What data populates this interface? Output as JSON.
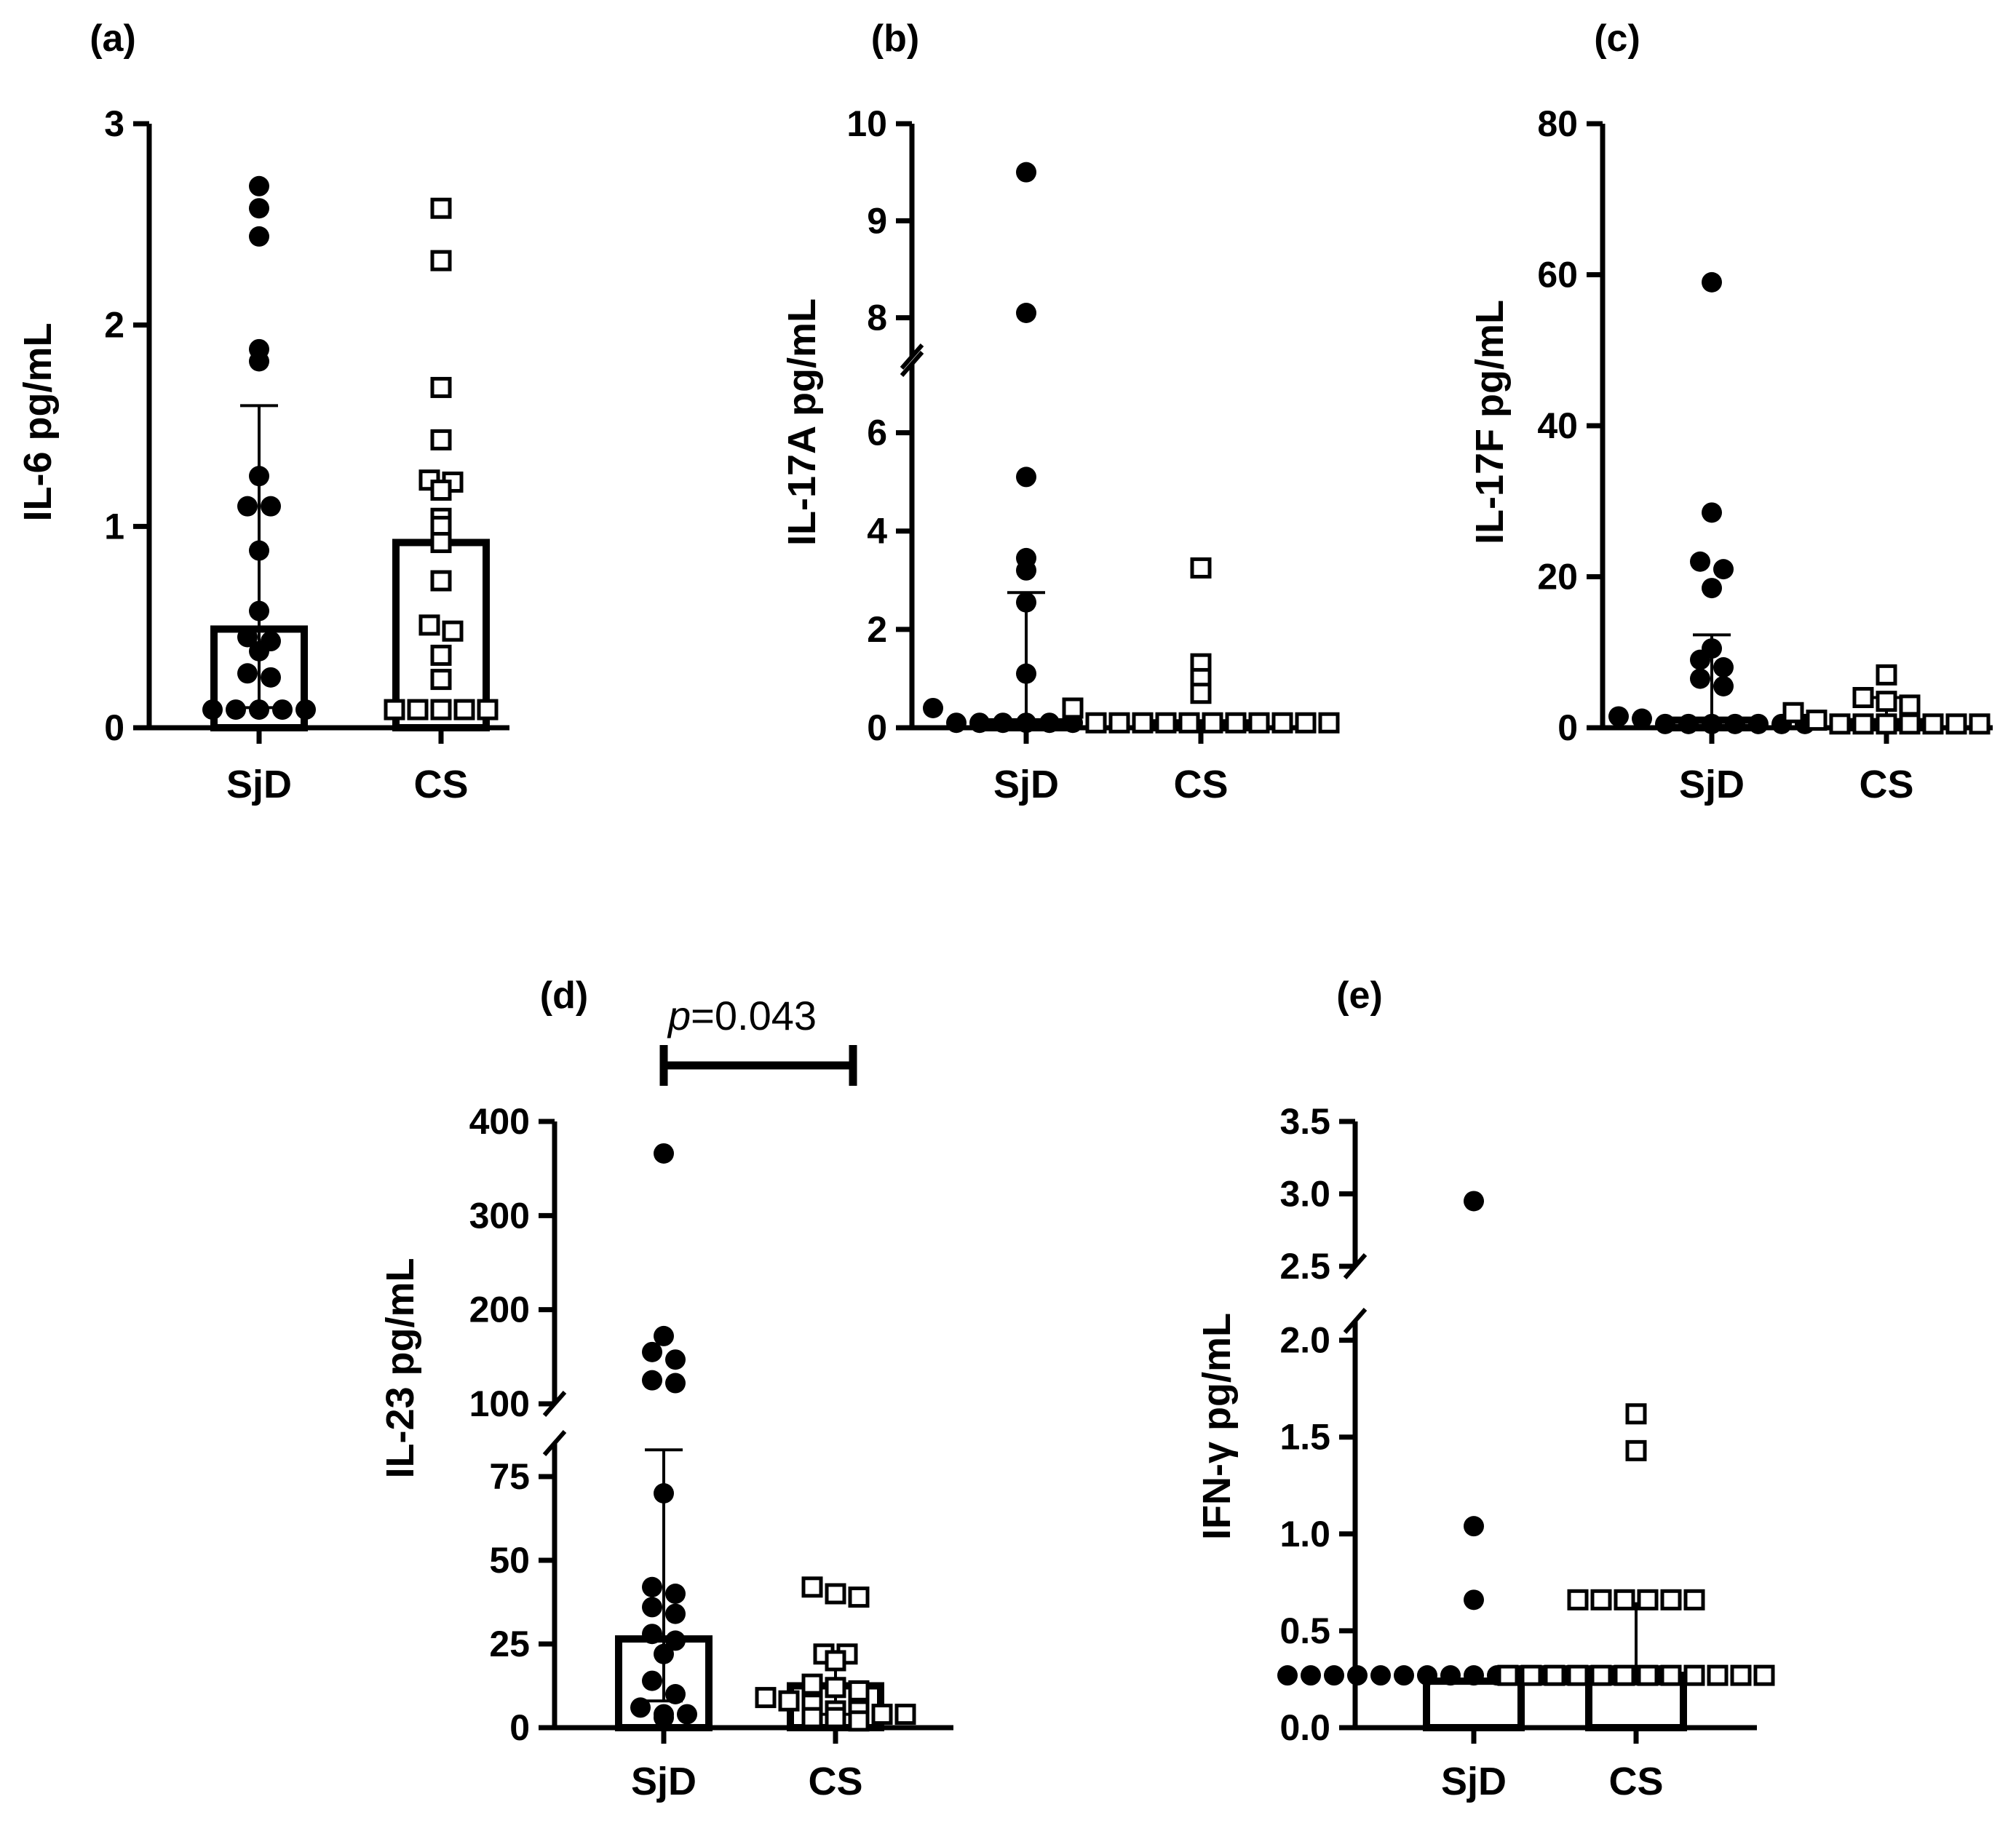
{
  "chart_data": [
    {
      "type": "scatter",
      "panel_label": "(a)",
      "ylabel": "IL-6 pg/mL",
      "categories": [
        "SjD",
        "CS"
      ],
      "yticks": [
        "0",
        "1",
        "2",
        "3"
      ],
      "ylim": [
        0,
        3
      ],
      "y_break": null,
      "bar_values": [
        0.49,
        0.92
      ],
      "error_bars": [
        [
          0.1,
          1.6
        ],
        null
      ],
      "series": [
        {
          "name": "SjD",
          "marker": "filled-circle",
          "values": [
            2.69,
            2.58,
            2.44,
            1.88,
            1.82,
            1.25,
            1.1,
            1.1,
            0.88,
            0.58,
            0.45,
            0.43,
            0.38,
            0.27,
            0.25,
            0.09,
            0.09,
            0.09,
            0.09,
            0.09
          ]
        },
        {
          "name": "CS",
          "marker": "open-square",
          "values": [
            2.58,
            2.32,
            1.69,
            1.43,
            1.23,
            1.22,
            1.18,
            1.04,
            1.0,
            0.92,
            0.73,
            0.51,
            0.48,
            0.36,
            0.24,
            0.09,
            0.09,
            0.09,
            0.09,
            0.09
          ]
        }
      ]
    },
    {
      "type": "scatter",
      "panel_label": "(b)",
      "ylabel": "IL-17A pg/mL",
      "categories": [
        "SjD",
        "CS"
      ],
      "yticks": [
        "0",
        "2",
        "4",
        "6",
        "8",
        "9",
        "10"
      ],
      "ylim": [
        0,
        10
      ],
      "y_break": [
        7.4,
        7.6
      ],
      "bar_values": [
        0.12,
        0.1
      ],
      "error_bars": [
        [
          0.05,
          2.75
        ],
        null
      ],
      "series": [
        {
          "name": "SjD",
          "marker": "filled-circle",
          "values": [
            9.5,
            8.05,
            5.1,
            3.45,
            3.2,
            2.55,
            1.1,
            0.4,
            0.1,
            0.1,
            0.1,
            0.1,
            0.1,
            0.1,
            0.1,
            0.1
          ]
        },
        {
          "name": "CS",
          "marker": "open-square",
          "values": [
            3.25,
            1.3,
            1.0,
            0.7,
            0.4,
            0.1,
            0.1,
            0.1,
            0.1,
            0.1,
            0.1,
            0.1,
            0.1,
            0.1,
            0.1,
            0.1
          ]
        }
      ]
    },
    {
      "type": "scatter",
      "panel_label": "(c)",
      "ylabel": "IL-17F pg/mL",
      "categories": [
        "SjD",
        "CS"
      ],
      "yticks": [
        "0",
        "20",
        "40",
        "60",
        "80"
      ],
      "ylim": [
        0,
        80
      ],
      "y_break": null,
      "bar_values": [
        1.0,
        0.8
      ],
      "error_bars": [
        [
          0.3,
          12.3
        ],
        [
          0.3,
          4.0
        ]
      ],
      "series": [
        {
          "name": "SjD",
          "marker": "filled-circle",
          "values": [
            59,
            28.5,
            22,
            21,
            18.5,
            10.5,
            9,
            8,
            6.5,
            5.5,
            1.5,
            1.2,
            0.5,
            0.5,
            0.5,
            0.5,
            0.5,
            0.5,
            0.5
          ]
        },
        {
          "name": "CS",
          "marker": "open-square",
          "values": [
            7,
            4,
            3.5,
            3,
            2,
            1,
            0.5,
            0.5,
            0.5,
            0.5,
            0.5,
            0.5,
            0.5
          ]
        }
      ]
    },
    {
      "type": "scatter",
      "panel_label": "(d)",
      "ylabel": "IL-23 pg/mL",
      "categories": [
        "SjD",
        "CS"
      ],
      "yticks": [
        "0",
        "25",
        "50",
        "75",
        "100",
        "200",
        "300",
        "400"
      ],
      "ylim": [
        0,
        400
      ],
      "y_break": [
        85,
        100
      ],
      "bar_values": [
        26.5,
        12.5
      ],
      "error_bars": [
        [
          8,
          83
        ],
        [
          4,
          22
        ]
      ],
      "annotation": {
        "text": "=0.043",
        "prefix_italic": "p",
        "between": [
          "SjD",
          "CS"
        ]
      },
      "series": [
        {
          "name": "SjD",
          "marker": "filled-circle",
          "values": [
            366,
            172,
            155,
            147,
            125,
            122,
            70,
            42,
            40,
            36,
            34,
            28,
            26,
            22,
            14,
            10,
            6,
            4,
            4,
            3
          ]
        },
        {
          "name": "CS",
          "marker": "open-square",
          "values": [
            42,
            40,
            39,
            22,
            22,
            20,
            13,
            12,
            11,
            9,
            8,
            7,
            5,
            5,
            4,
            4,
            3,
            3,
            2
          ]
        }
      ]
    },
    {
      "type": "scatter",
      "panel_label": "(e)",
      "ylabel": "IFN-γ pg/mL",
      "categories": [
        "SjD",
        "CS"
      ],
      "yticks": [
        "0.0",
        "0.5",
        "1.0",
        "1.5",
        "2.0",
        "2.5",
        "3.0",
        "3.5"
      ],
      "ylim": [
        0,
        3.5
      ],
      "y_break": [
        2.1,
        2.5
      ],
      "bar_values": [
        0.24,
        0.27
      ],
      "error_bars": [
        null,
        [
          0.24,
          0.64
        ]
      ],
      "series": [
        {
          "name": "SjD",
          "marker": "filled-circle",
          "values": [
            2.95,
            1.04,
            0.66,
            0.27,
            0.27,
            0.27,
            0.27,
            0.27,
            0.27,
            0.27,
            0.27,
            0.27,
            0.27,
            0.27,
            0.27,
            0.27,
            0.27,
            0.27,
            0.27,
            0.27
          ]
        },
        {
          "name": "CS",
          "marker": "open-square",
          "values": [
            1.62,
            1.43,
            0.66,
            0.66,
            0.66,
            0.66,
            0.66,
            0.66,
            0.27,
            0.27,
            0.27,
            0.27,
            0.27,
            0.27,
            0.27,
            0.27,
            0.27,
            0.27,
            0.27,
            0.27
          ]
        }
      ]
    }
  ]
}
